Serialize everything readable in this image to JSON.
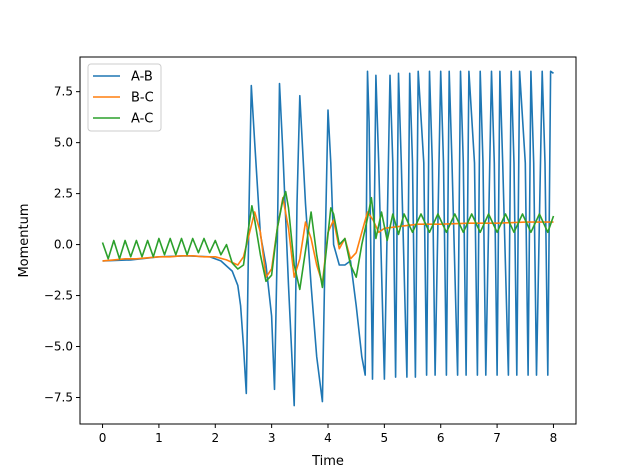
{
  "chart_data": {
    "type": "line",
    "title": "",
    "xlabel": "Time",
    "ylabel": "Momentum",
    "xlim": [
      -0.4,
      8.4
    ],
    "ylim": [
      -8.8,
      9.2
    ],
    "xticks": [
      0,
      1,
      2,
      3,
      4,
      5,
      6,
      7,
      8
    ],
    "yticks": [
      -7.5,
      -5.0,
      -2.5,
      0.0,
      2.5,
      5.0,
      7.5
    ],
    "xtick_labels": [
      "0",
      "1",
      "2",
      "3",
      "4",
      "5",
      "6",
      "7",
      "8"
    ],
    "ytick_labels": [
      "−7.5",
      "−5.0",
      "−2.5",
      "0.0",
      "2.5",
      "5.0",
      "7.5"
    ],
    "grid": false,
    "legend_position": "top-left",
    "series": [
      {
        "name": "A-B",
        "color": "#1f77b4",
        "x": [
          0.0,
          0.5,
          1.0,
          1.5,
          1.9,
          2.1,
          2.3,
          2.4,
          2.45,
          2.5,
          2.55,
          2.6,
          2.64,
          2.7,
          2.8,
          2.9,
          3.0,
          3.05,
          3.1,
          3.14,
          3.2,
          3.3,
          3.4,
          3.45,
          3.5,
          3.6,
          3.7,
          3.8,
          3.9,
          3.95,
          4.0,
          4.05,
          4.1,
          4.2,
          4.3,
          4.4,
          4.5,
          4.6,
          4.66,
          4.7,
          4.73,
          4.79,
          4.85,
          4.9,
          5.0,
          5.1,
          5.15,
          5.2,
          5.25,
          5.3,
          5.4,
          5.45,
          5.5,
          5.55,
          5.6,
          5.7,
          5.75,
          5.8,
          5.85,
          5.9,
          6.0,
          6.05,
          6.1,
          6.15,
          6.2,
          6.3,
          6.35,
          6.4,
          6.45,
          6.5,
          6.6,
          6.65,
          6.7,
          6.75,
          6.8,
          6.9,
          6.95,
          7.0,
          7.05,
          7.1,
          7.2,
          7.25,
          7.3,
          7.35,
          7.4,
          7.5,
          7.55,
          7.6,
          7.65,
          7.7,
          7.8,
          7.85,
          7.9,
          7.95,
          8.0
        ],
        "y": [
          -0.8,
          -0.75,
          -0.6,
          -0.55,
          -0.6,
          -0.8,
          -1.3,
          -2.0,
          -3.0,
          -5.0,
          -7.3,
          2.0,
          7.8,
          5.0,
          0.5,
          -1.0,
          -3.5,
          -7.1,
          0.0,
          7.9,
          4.5,
          -2.0,
          -7.9,
          2.0,
          7.3,
          2.0,
          -2.0,
          -5.5,
          -7.7,
          0.0,
          6.6,
          4.0,
          0.0,
          -1.0,
          -1.0,
          -0.8,
          -3.0,
          -5.5,
          -6.4,
          8.5,
          6.0,
          -6.6,
          8.3,
          4.0,
          -6.6,
          8.3,
          4.0,
          -6.5,
          8.4,
          4.0,
          -6.5,
          8.4,
          4.0,
          -6.5,
          8.5,
          4.0,
          -6.4,
          8.5,
          4.0,
          -6.4,
          8.5,
          4.0,
          -6.4,
          8.5,
          4.0,
          -6.4,
          8.5,
          4.0,
          -6.4,
          8.5,
          4.0,
          -6.4,
          8.5,
          4.0,
          -6.4,
          8.5,
          4.0,
          -6.4,
          8.5,
          4.0,
          -6.4,
          8.5,
          4.0,
          -6.4,
          8.5,
          4.0,
          -6.4,
          8.5,
          4.0,
          -6.4,
          8.5,
          4.0,
          -6.4,
          8.5,
          8.4
        ]
      },
      {
        "name": "B-C",
        "color": "#ff7f0e",
        "x": [
          0.0,
          0.2,
          0.4,
          0.6,
          0.8,
          1.0,
          1.2,
          1.4,
          1.6,
          1.8,
          2.0,
          2.2,
          2.4,
          2.5,
          2.6,
          2.7,
          2.8,
          2.9,
          3.0,
          3.1,
          3.2,
          3.3,
          3.4,
          3.5,
          3.6,
          3.7,
          3.8,
          3.9,
          4.0,
          4.1,
          4.2,
          4.3,
          4.4,
          4.5,
          4.6,
          4.7,
          4.8,
          4.9,
          5.0,
          5.3,
          5.6,
          6.0,
          6.5,
          7.0,
          7.5,
          8.0
        ],
        "y": [
          -0.8,
          -0.75,
          -0.7,
          -0.7,
          -0.65,
          -0.6,
          -0.6,
          -0.55,
          -0.55,
          -0.6,
          -0.6,
          -0.75,
          -1.0,
          -0.6,
          0.5,
          1.6,
          0.6,
          -1.6,
          -1.2,
          0.8,
          2.3,
          0.8,
          -1.6,
          -0.7,
          1.1,
          0.3,
          -1.0,
          -1.9,
          0.6,
          1.2,
          -0.2,
          0.3,
          -0.7,
          -0.4,
          0.6,
          1.6,
          1.2,
          0.6,
          0.8,
          0.9,
          1.0,
          1.0,
          1.05,
          1.05,
          1.1,
          1.1
        ]
      },
      {
        "name": "A-C",
        "color": "#2ca02c",
        "x": [
          0.0,
          0.1,
          0.2,
          0.3,
          0.4,
          0.5,
          0.6,
          0.7,
          0.8,
          0.9,
          1.0,
          1.1,
          1.2,
          1.3,
          1.4,
          1.5,
          1.6,
          1.7,
          1.8,
          1.9,
          2.0,
          2.1,
          2.2,
          2.3,
          2.4,
          2.5,
          2.6,
          2.65,
          2.7,
          2.8,
          2.9,
          3.0,
          3.1,
          3.2,
          3.25,
          3.3,
          3.4,
          3.5,
          3.6,
          3.7,
          3.8,
          3.9,
          4.0,
          4.05,
          4.1,
          4.2,
          4.3,
          4.4,
          4.5,
          4.6,
          4.7,
          4.77,
          4.85,
          4.95,
          5.05,
          5.15,
          5.25,
          5.35,
          5.5,
          5.65,
          5.8,
          5.95,
          6.1,
          6.25,
          6.4,
          6.55,
          6.7,
          6.85,
          7.0,
          7.15,
          7.3,
          7.45,
          7.6,
          7.75,
          7.9,
          8.0
        ],
        "y": [
          0.1,
          -0.7,
          0.2,
          -0.7,
          0.2,
          -0.6,
          0.2,
          -0.6,
          0.2,
          -0.6,
          0.3,
          -0.5,
          0.3,
          -0.5,
          0.3,
          -0.5,
          0.3,
          -0.4,
          0.3,
          -0.4,
          0.2,
          -0.5,
          0.0,
          -0.9,
          -1.2,
          -1.0,
          1.0,
          1.9,
          1.2,
          -0.5,
          -1.8,
          -1.5,
          0.8,
          2.2,
          2.6,
          1.8,
          -1.0,
          -2.2,
          -0.3,
          1.6,
          -0.5,
          -2.1,
          0.5,
          1.8,
          1.5,
          0.0,
          0.3,
          -1.0,
          -1.6,
          0.0,
          1.3,
          2.3,
          0.3,
          1.6,
          0.2,
          1.5,
          0.5,
          1.5,
          0.6,
          1.5,
          0.6,
          1.5,
          0.6,
          1.5,
          0.6,
          1.5,
          0.6,
          1.5,
          0.6,
          1.5,
          0.6,
          1.5,
          0.6,
          1.5,
          0.6,
          1.4
        ]
      }
    ]
  }
}
